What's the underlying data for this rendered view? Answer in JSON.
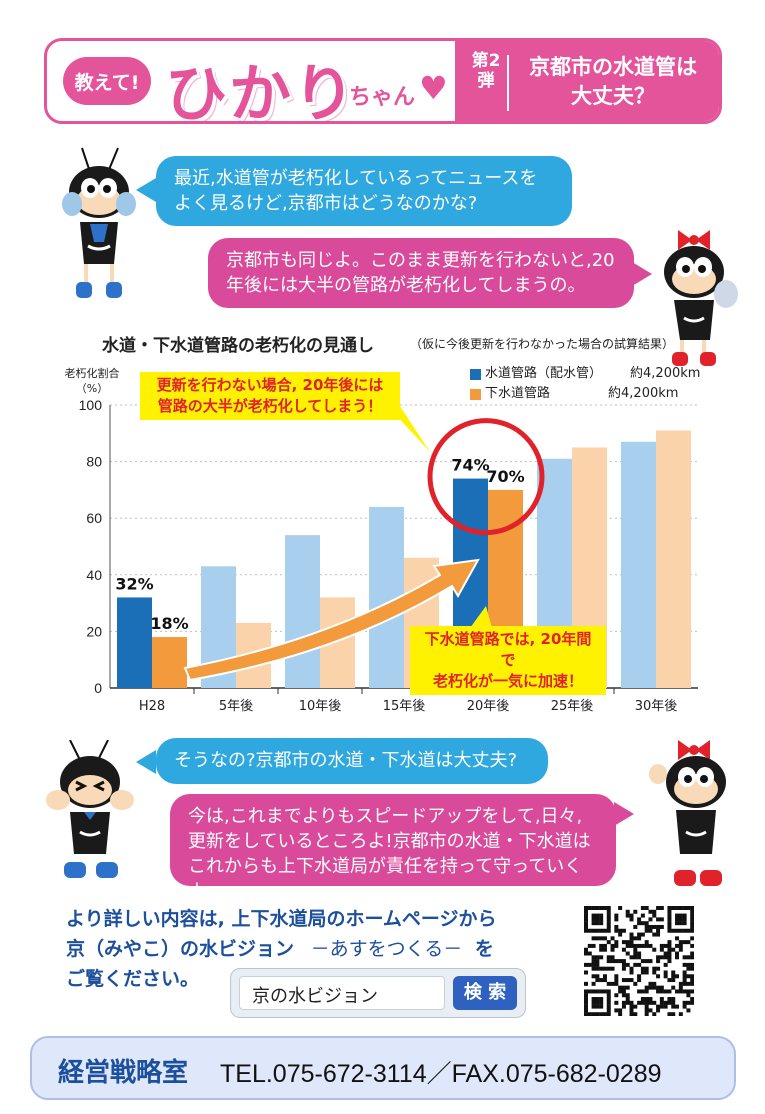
{
  "header": {
    "badge": "教えて!",
    "name": "ひかり",
    "suffix": "ちゃん",
    "volume": "第2弾",
    "title_line1": "京都市の水道管は",
    "title_line2": "大丈夫？"
  },
  "dialog1": {
    "q": "最近,水道管が老朽化しているってニュースをよく見るけど,京都市はどうなのかな?",
    "a": "京都市も同じよ。このまま更新を行わないと,20年後には大半の管路が老朽化してしまうの。"
  },
  "chart_data": {
    "type": "bar",
    "title": "水道・下水道管路の老朽化の見通し",
    "subtitle": "（仮に今後更新を行わなかった場合の試算結果）",
    "ylabel": "老朽化割合（%）",
    "ylim": [
      0,
      100
    ],
    "yticks": [
      "0",
      "20",
      "40",
      "60",
      "80",
      "100"
    ],
    "categories": [
      "H28",
      "5年後",
      "10年後",
      "15年後",
      "20年後",
      "25年後",
      "30年後"
    ],
    "series": [
      {
        "name": "水道管路（配水管）",
        "length": "約4,200km",
        "color": "#1a6fb6",
        "faded_color": "#a9cfee",
        "values": [
          32,
          43,
          54,
          64,
          74,
          81,
          87
        ]
      },
      {
        "name": "下水道管路",
        "length": "約4,200km",
        "color": "#f39a3c",
        "faded_color": "#fbd3ab",
        "values": [
          18,
          23,
          32,
          46,
          70,
          85,
          91
        ]
      }
    ],
    "data_labels": [
      {
        "text": "32%",
        "series": 0,
        "category": 0
      },
      {
        "text": "18%",
        "series": 1,
        "category": 0
      },
      {
        "text": "74%",
        "series": 0,
        "category": 4
      },
      {
        "text": "70%",
        "series": 1,
        "category": 4
      }
    ],
    "callouts": {
      "top": [
        "更新を行わない場合, 20年後には",
        "管路の大半が老朽化してしまう！"
      ],
      "bottom": [
        "下水道管路では, 20年間で",
        "老朽化が一気に加速！"
      ]
    }
  },
  "dialog2": {
    "q": "そうなの?京都市の水道・下水道は大丈夫?",
    "a": "今は,これまでよりもスピードアップをして,日々,更新をしているところよ!京都市の水道・下水道はこれからも上下水道局が責任を持って守っていくよ。"
  },
  "info": {
    "line1": "より詳しい内容は, 上下水道局のホームページから",
    "line2": "京（みやこ）の水ビジョン",
    "line2b": "－あすをつくる－",
    "line2c": "を",
    "line3": "ご覧ください。"
  },
  "search": {
    "value": "京の水ビジョン",
    "button": "検 索"
  },
  "footer": {
    "dept": "経営戦略室",
    "contact": "TEL.075-672-3114／FAX.075-682-0289"
  },
  "colors": {
    "pink": "#e4549a",
    "blue": "#2ea8df",
    "navy": "#1c4f9c",
    "yellow": "#fff200"
  }
}
